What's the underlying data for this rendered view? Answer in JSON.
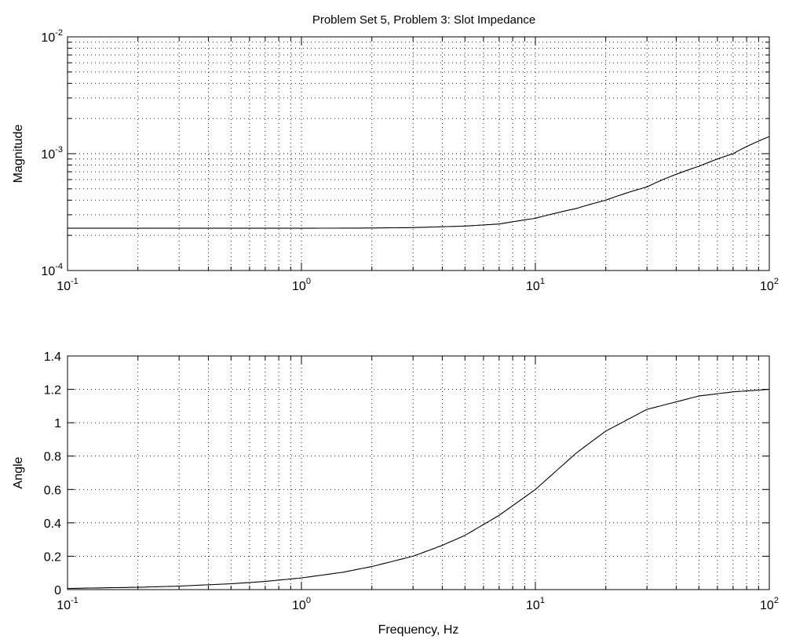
{
  "chart_data": [
    {
      "type": "line",
      "title": "Problem Set 5, Problem 3: Slot Impedance",
      "xlabel": "",
      "ylabel": "Magnitude",
      "xscale": "log",
      "yscale": "log",
      "xlim": [
        0.1,
        100
      ],
      "ylim": [
        0.0001,
        0.01
      ],
      "grid": true,
      "x_ticks": [
        {
          "base": "10",
          "exp": "-1",
          "value": 0.1
        },
        {
          "base": "10",
          "exp": "0",
          "value": 1
        },
        {
          "base": "10",
          "exp": "1",
          "value": 10
        },
        {
          "base": "10",
          "exp": "2",
          "value": 100
        }
      ],
      "y_ticks": [
        {
          "base": "10",
          "exp": "-4",
          "value": 0.0001
        },
        {
          "base": "10",
          "exp": "-3",
          "value": 0.001
        },
        {
          "base": "10",
          "exp": "-2",
          "value": 0.01
        }
      ],
      "series": [
        {
          "x": [
            0.1,
            0.2,
            0.5,
            1,
            2,
            3,
            5,
            7,
            10,
            15,
            20,
            30,
            50,
            70,
            100
          ],
          "values": [
            0.00023,
            0.00023,
            0.00023,
            0.00023,
            0.000231,
            0.000233,
            0.00024,
            0.00025,
            0.00028,
            0.00034,
            0.0004,
            0.00052,
            0.00078,
            0.001,
            0.0014
          ]
        }
      ]
    },
    {
      "type": "line",
      "title": "",
      "xlabel": "Frequency, Hz",
      "ylabel": "Angle",
      "xscale": "log",
      "yscale": "linear",
      "xlim": [
        0.1,
        100
      ],
      "ylim": [
        0,
        1.4
      ],
      "grid": true,
      "x_ticks": [
        {
          "base": "10",
          "exp": "-1",
          "value": 0.1
        },
        {
          "base": "10",
          "exp": "0",
          "value": 1
        },
        {
          "base": "10",
          "exp": "1",
          "value": 10
        },
        {
          "base": "10",
          "exp": "2",
          "value": 100
        }
      ],
      "y_ticks": [
        "0",
        "0.2",
        "0.4",
        "0.6",
        "0.8",
        "1",
        "1.2",
        "1.4"
      ],
      "series": [
        {
          "x": [
            0.1,
            0.2,
            0.3,
            0.5,
            0.7,
            1,
            1.5,
            2,
            3,
            4,
            5,
            7,
            10,
            15,
            20,
            30,
            50,
            70,
            100
          ],
          "values": [
            0.007,
            0.014,
            0.021,
            0.035,
            0.049,
            0.07,
            0.104,
            0.138,
            0.2,
            0.265,
            0.325,
            0.445,
            0.6,
            0.82,
            0.95,
            1.08,
            1.16,
            1.185,
            1.2
          ]
        }
      ]
    }
  ]
}
